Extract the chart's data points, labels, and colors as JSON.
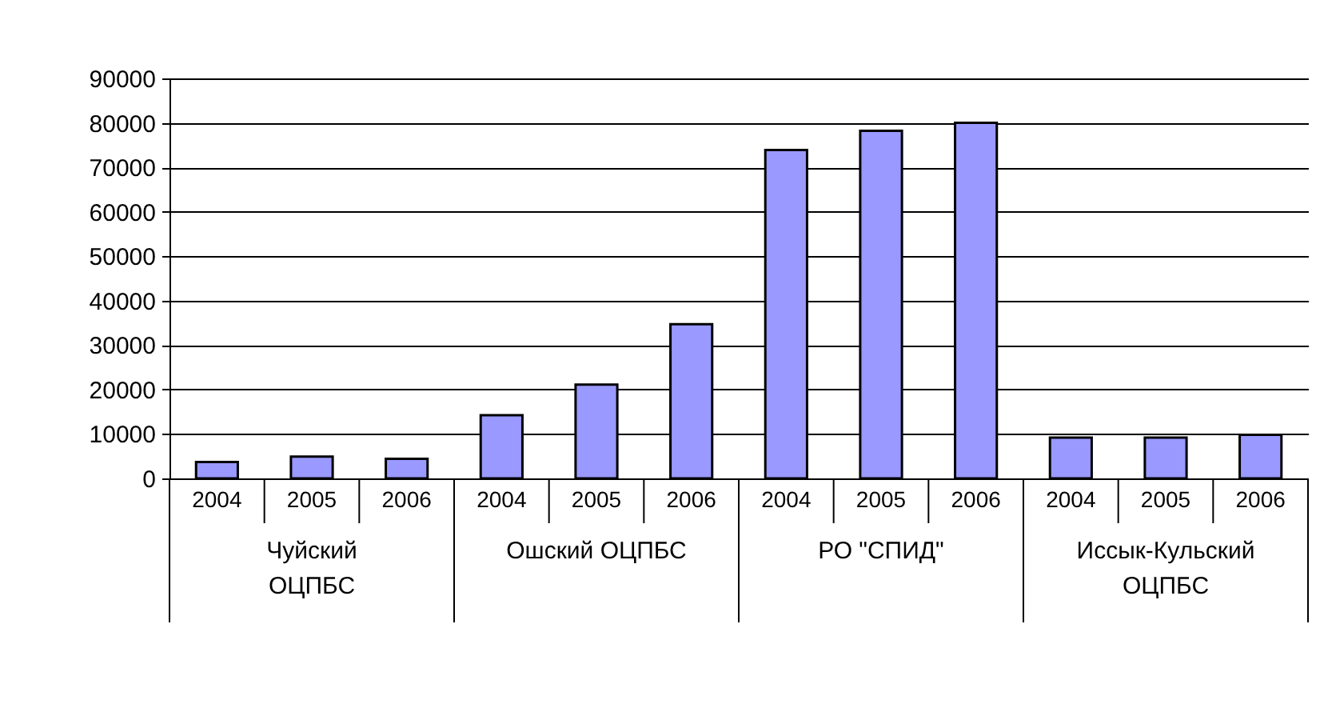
{
  "chart_data": {
    "type": "bar",
    "categories": [
      "2004",
      "2005",
      "2006",
      "2004",
      "2005",
      "2006",
      "2004",
      "2005",
      "2006",
      "2004",
      "2005",
      "2006"
    ],
    "values": [
      3700,
      4900,
      4400,
      14200,
      21100,
      34700,
      73900,
      78200,
      80000,
      9200,
      9200,
      9800
    ],
    "color": "#9999ff",
    "annotations": [
      "Чуйский\nОЦПБС",
      "Ошский ОЦПБС",
      "РО \"СПИД\"",
      "Иссык-Кульский\nОЦПБС"
    ],
    "ylim": [
      0,
      90000
    ],
    "yticks": [
      0,
      10000,
      20000,
      30000,
      40000,
      50000,
      60000,
      70000,
      80000,
      90000
    ],
    "grid": "y",
    "legend": false
  }
}
